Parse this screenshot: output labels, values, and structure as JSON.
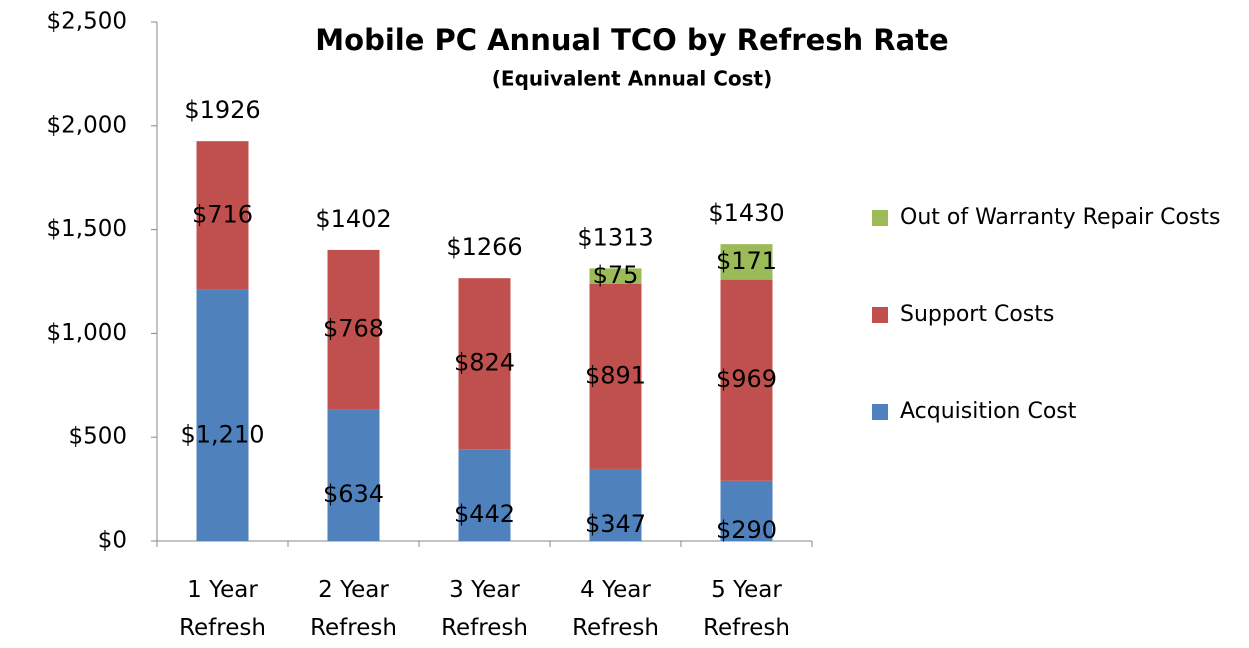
{
  "chart_data": {
    "type": "stacked_bar",
    "title": "Mobile PC Annual TCO by Refresh Rate",
    "subtitle": "(Equivalent Annual Cost)",
    "categories": [
      "1 Year Refresh",
      "2 Year Refresh",
      "3 Year Refresh",
      "4 Year Refresh",
      "5 Year Refresh"
    ],
    "series": [
      {
        "name": "Acquisition Cost",
        "color": "#4f81bd",
        "values": [
          1210,
          634,
          442,
          347,
          290
        ],
        "value_labels": [
          "$1,210",
          "$634",
          "$442",
          "$347",
          "$290"
        ]
      },
      {
        "name": "Support Costs",
        "color": "#c0504d",
        "values": [
          716,
          768,
          824,
          891,
          969
        ],
        "value_labels": [
          "$716",
          "$768",
          "$824",
          "$891",
          "$969"
        ]
      },
      {
        "name": "Out of Warranty Repair Costs",
        "color": "#9bbb59",
        "values": [
          null,
          null,
          null,
          75,
          171
        ],
        "value_labels": [
          null,
          null,
          null,
          "$75",
          "$171"
        ]
      }
    ],
    "totals": [
      1926,
      1402,
      1266,
      1313,
      1430
    ],
    "total_labels": [
      "$1926",
      "$1402",
      "$1266",
      "$1313",
      "$1430"
    ],
    "ylim": [
      0,
      2500
    ],
    "yticks": [
      {
        "value": 0,
        "label": "$0"
      },
      {
        "value": 500,
        "label": "$500"
      },
      {
        "value": 1000,
        "label": "$1,000"
      },
      {
        "value": 1500,
        "label": "$1,500"
      },
      {
        "value": 2000,
        "label": "$2,000"
      },
      {
        "value": 2500,
        "label": "$2,500"
      }
    ],
    "legend": "right"
  }
}
